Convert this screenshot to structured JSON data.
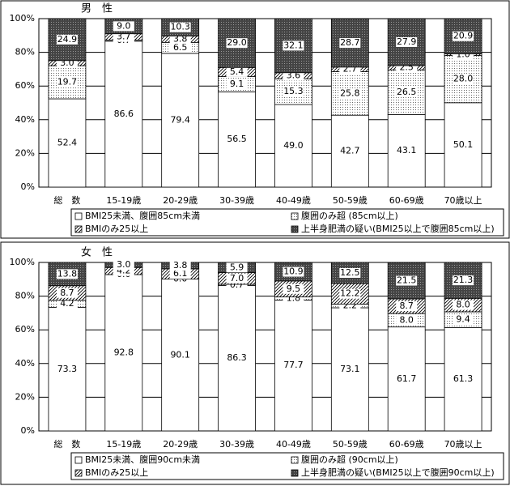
{
  "chart_data": [
    {
      "type": "bar",
      "stacked": true,
      "title": "男　性",
      "categories": [
        "総　数",
        "15-19歳",
        "20-29歳",
        "30-39歳",
        "40-49歳",
        "50-59歳",
        "60-69歳",
        "70歳以上"
      ],
      "series": [
        {
          "name": "BMI25未満、腹囲85cm未満",
          "color": "#ffffff",
          "pattern": "none",
          "values": [
            52.4,
            86.6,
            79.4,
            56.5,
            49.0,
            42.7,
            43.1,
            50.1
          ],
          "value_labels": [
            "52.4",
            "86.6",
            "79.4",
            "56.5",
            "49.0",
            "42.7",
            "43.1",
            "50.1"
          ]
        },
        {
          "name": "腹囲のみ超 (85cm以上)",
          "color": "#ffffff",
          "pattern": "dots",
          "values": [
            19.7,
            0.7,
            6.5,
            9.1,
            15.3,
            25.8,
            26.5,
            28.0
          ],
          "value_labels": [
            "19.7",
            "0.7",
            "6.5",
            "9.1",
            "15.3",
            "25.8",
            "26.5",
            "28.0"
          ]
        },
        {
          "name": "BMIのみ25以上",
          "color": "#ffffff",
          "pattern": "hatch",
          "values": [
            3.0,
            3.7,
            3.8,
            5.4,
            3.6,
            2.7,
            2.5,
            1.0
          ],
          "value_labels": [
            "3.0",
            "3.7",
            "3.8",
            "5.4",
            "3.6",
            "2.7",
            "2.5",
            "1.0"
          ]
        },
        {
          "name": "上半身肥満の疑い(BMI25以上で腹囲85cm以上)",
          "color": "#555555",
          "pattern": "dark",
          "values": [
            24.9,
            9.0,
            10.3,
            29.0,
            32.1,
            28.7,
            27.9,
            20.9
          ],
          "value_labels": [
            "24.9",
            "9.0",
            "10.3",
            "29.0",
            "32.1",
            "28.7",
            "27.9",
            "20.9"
          ]
        }
      ],
      "ylim": [
        0,
        100
      ],
      "yticks": [
        {
          "value": 0,
          "label": "0%"
        },
        {
          "value": 20,
          "label": "20%"
        },
        {
          "value": 40,
          "label": "40%"
        },
        {
          "value": 60,
          "label": "60%"
        },
        {
          "value": 80,
          "label": "80%"
        },
        {
          "value": 100,
          "label": "100%"
        }
      ],
      "grid": true
    },
    {
      "type": "bar",
      "stacked": true,
      "title": "女　性",
      "categories": [
        "総　数",
        "15-19歳",
        "20-29歳",
        "30-39歳",
        "40-49歳",
        "50-59歳",
        "60-69歳",
        "70歳以上"
      ],
      "series": [
        {
          "name": "BMI25未満、腹囲90cm未満",
          "color": "#ffffff",
          "pattern": "none",
          "values": [
            73.3,
            92.8,
            90.1,
            86.3,
            77.7,
            73.1,
            61.7,
            61.3
          ]
        },
        {
          "name": "腹囲のみ超 (90cm以上)",
          "color": "#ffffff",
          "pattern": "dots",
          "values": [
            4.2,
            0.0,
            0.0,
            0.7,
            1.8,
            2.2,
            8.0,
            9.4
          ],
          "value_labels": [
            "4.2",
            "0.0",
            "0.0",
            "0.7",
            "1.8",
            "2.2",
            "8.0",
            "9.4"
          ]
        },
        {
          "name": "BMIのみ25以上",
          "color": "#ffffff",
          "pattern": "hatch",
          "values": [
            8.7,
            4.2,
            6.1,
            7.0,
            9.5,
            12.2,
            8.7,
            8.0
          ],
          "value_labels": [
            "8.7",
            "4.2",
            "6.1",
            "7.0",
            "9.5",
            "12.2",
            "8.7",
            "8.0"
          ]
        },
        {
          "name": "上半身肥満の疑い(BMI25以上で腹囲90cm以上)",
          "color": "#555555",
          "pattern": "dark",
          "values": [
            13.8,
            3.0,
            3.8,
            5.9,
            10.9,
            12.5,
            21.5,
            21.3
          ],
          "value_labels": [
            "13.8",
            "3.0",
            "3.8",
            "5.9",
            "10.9",
            "12.5",
            "21.5",
            "21.3"
          ]
        }
      ],
      "ylim": [
        0,
        100
      ],
      "yticks": [
        {
          "value": 0,
          "label": "0%"
        },
        {
          "value": 20,
          "label": "20%"
        },
        {
          "value": 40,
          "label": "40%"
        },
        {
          "value": 60,
          "label": "60%"
        },
        {
          "value": 80,
          "label": "80%"
        },
        {
          "value": 100,
          "label": "100%"
        }
      ],
      "grid": true
    }
  ]
}
